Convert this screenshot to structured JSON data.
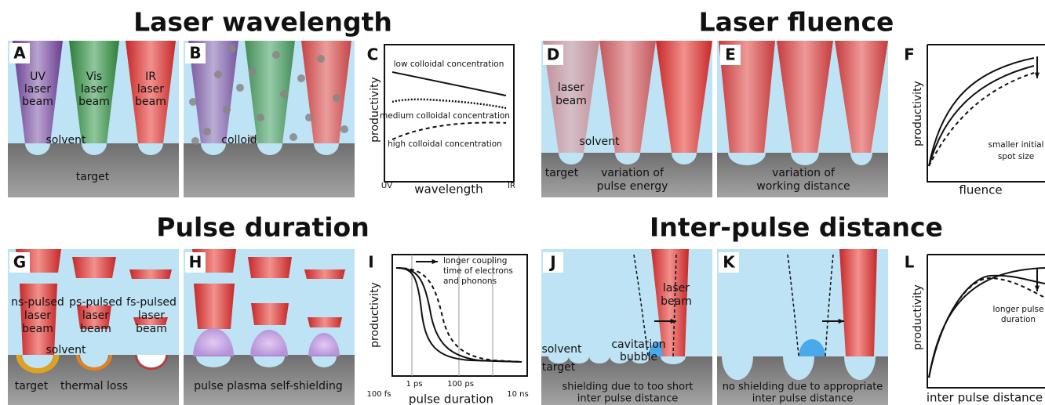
{
  "sections": {
    "wavelength": "Laser wavelength",
    "fluence": "Laser fluence",
    "duration": "Pulse duration",
    "distance": "Inter-pulse distance"
  },
  "panels": {
    "A": {
      "letter": "A",
      "beams": [
        [
          "UV",
          "laser",
          "beam"
        ],
        [
          "Vis",
          "laser",
          "beam"
        ],
        [
          "IR",
          "laser",
          "beam"
        ]
      ],
      "solvent": "solvent",
      "target": "target"
    },
    "B": {
      "letter": "B",
      "colloid": "colloid"
    },
    "C": {
      "letter": "C",
      "y_label": "productivity",
      "x_label": "wavelength",
      "x_min": "UV",
      "x_max": "IR",
      "curves": [
        "low colloidal concentration",
        "medium colloidal concentration",
        "high colloidal concentration"
      ]
    },
    "D": {
      "letter": "D",
      "beam": [
        "laser",
        "beam"
      ],
      "solvent": "solvent",
      "target": "target",
      "caption": [
        "variation of",
        "pulse energy"
      ]
    },
    "E": {
      "letter": "E",
      "caption": [
        "variation of",
        "working distance"
      ]
    },
    "F": {
      "letter": "F",
      "y_label": "productivity",
      "x_label": "fluence",
      "note": [
        "smaller initial",
        "spot size"
      ]
    },
    "G": {
      "letter": "G",
      "beams": [
        [
          "ns-pulsed",
          "laser",
          "beam"
        ],
        [
          "ps-pulsed",
          "laser",
          "beam"
        ],
        [
          "fs-pulsed",
          "laser",
          "beam"
        ]
      ],
      "solvent": "solvent",
      "target": "target",
      "loss": "thermal loss"
    },
    "H": {
      "letter": "H",
      "caption": "pulse plasma self-shielding"
    },
    "I": {
      "letter": "I",
      "y_label": "productivity",
      "x_label": "pulse duration",
      "x_ticks": [
        "100 fs",
        "1 ps",
        "100 ps",
        "10 ns"
      ],
      "note": [
        "longer coupling",
        "time of electrons",
        "and phonons"
      ]
    },
    "J": {
      "letter": "J",
      "beam": [
        "laser",
        "beam"
      ],
      "solvent": "solvent",
      "target": "target",
      "bubble": [
        "cavitation",
        "bubble"
      ],
      "caption": [
        "shielding due to too short",
        "inter pulse distance"
      ]
    },
    "K": {
      "letter": "K",
      "caption": [
        "no shielding due to appropriate",
        "inter pulse distance"
      ]
    },
    "L": {
      "letter": "L",
      "y_label": "productivity",
      "x_label": "inter pulse distance",
      "note": [
        "longer pulse",
        "duration"
      ]
    }
  }
}
